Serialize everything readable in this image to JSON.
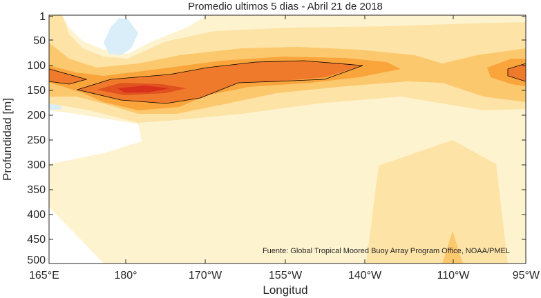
{
  "chart_data": {
    "type": "heatmap",
    "title": "Promedio ultimos 5 dias - Abril 21 de 2018",
    "xlabel": "Longitud",
    "ylabel": "Profundidad [m]",
    "source_note": "Fuente: Global Tropical Moored Buoy Array Program Office, NOAA/PMEL",
    "x_ticks": [
      "165°E",
      "180°",
      "170°W",
      "155°W",
      "140°W",
      "110°W",
      "95°W"
    ],
    "y_ticks": [
      "1",
      "50",
      "100",
      "150",
      "200",
      "250",
      "300",
      "350",
      "400",
      "450",
      "500"
    ],
    "colors": {
      "cold": "#d9eef9",
      "level1": "#fef3cf",
      "level2": "#fde3a6",
      "level3": "#fcc86e",
      "level4": "#f9a53c",
      "level5": "#f07a2c",
      "level6": "#d9301c",
      "contour": "#000000"
    }
  }
}
